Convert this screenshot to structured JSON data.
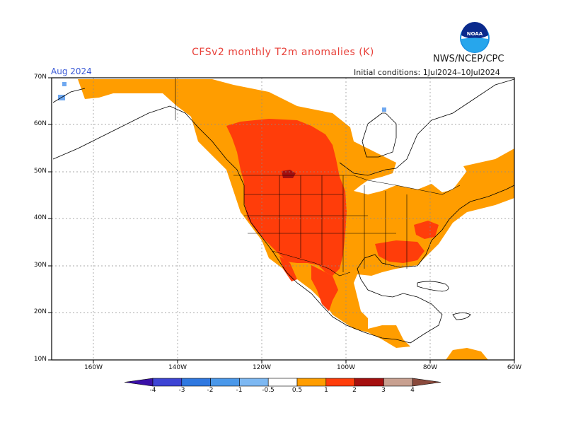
{
  "map": {
    "title": "CFSv2 monthly T2m anomalies (K)",
    "agency": "NWS/NCEP/CPC",
    "month": "Aug 2024",
    "initial_conditions": "Initial conditions: 1Jul2024–10Jul2024",
    "logo_text": "NOAA",
    "region": "North America",
    "lat_labels": [
      "70N",
      "60N",
      "50N",
      "40N",
      "30N",
      "20N",
      "10N"
    ],
    "lon_labels": [
      "160W",
      "140W",
      "120W",
      "100W",
      "80W",
      "60W"
    ],
    "colors": {
      "anom_0_5_1": "#ff9d00",
      "anom_1_2": "#ff3d0a",
      "anom_2_3": "#a50f0f",
      "anom_cold_0_5_1": "#6fa8f0",
      "land_outline": "#000000",
      "grid": "#8c8c8c"
    }
  },
  "colorbar": {
    "labels": [
      "-4",
      "-3",
      "-2",
      "-1",
      "-0.5",
      "0.5",
      "1",
      "2",
      "3",
      "4"
    ],
    "colors": [
      "#3a10a8",
      "#3d44d4",
      "#2f78e0",
      "#4a98ea",
      "#7db8f2",
      "#ffffff",
      "#ff9d00",
      "#ff3d0a",
      "#a50f0f",
      "#c8a090",
      "#8a4a3c"
    ]
  }
}
